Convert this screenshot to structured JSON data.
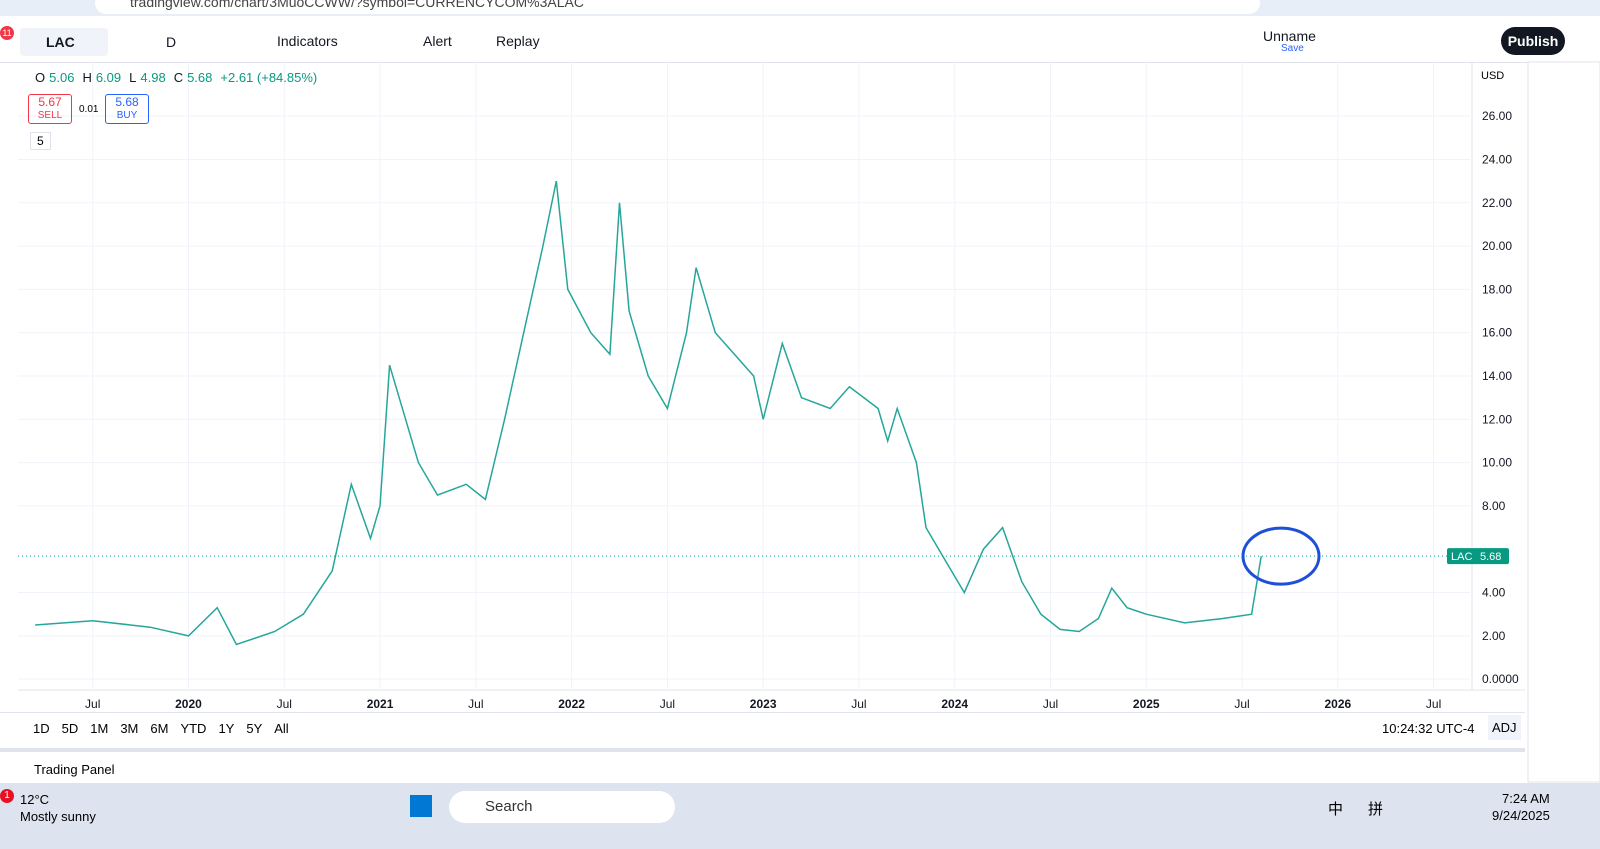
{
  "browser": {
    "url": "tradingview.com/chart/3MuoCCWW/?symbol=CURRENCYCOM%3ALAC",
    "badge": "11"
  },
  "toolbar": {
    "symbol": "LAC",
    "interval": "D",
    "indicators": "Indicators",
    "alert": "Alert",
    "replay": "Replay",
    "layout_name": "Unname",
    "save": "Save",
    "publish": "Publish"
  },
  "legend": {
    "ohlc": [
      {
        "label": "O",
        "value": "5.06"
      },
      {
        "label": "H",
        "value": "6.09"
      },
      {
        "label": "L",
        "value": "4.98"
      },
      {
        "label": "C",
        "value": "5.68"
      }
    ],
    "change": "+2.61 (+84.85%)",
    "sell_price": "5.67",
    "sell": "SELL",
    "spread": "0.01",
    "buy_price": "5.68",
    "buy": "BUY",
    "indicators_count": "5"
  },
  "chart": {
    "type": "line",
    "color": "#26a69a",
    "x": [
      2019.2,
      2019.5,
      2019.8,
      2020.0,
      2020.15,
      2020.25,
      2020.45,
      2020.6,
      2020.75,
      2020.85,
      2020.95,
      2021.0,
      2021.05,
      2021.1,
      2021.2,
      2021.3,
      2021.45,
      2021.55,
      2021.65,
      2021.75,
      2021.85,
      2021.92,
      2021.98,
      2022.1,
      2022.2,
      2022.25,
      2022.3,
      2022.4,
      2022.5,
      2022.6,
      2022.65,
      2022.75,
      2022.85,
      2022.95,
      2023.0,
      2023.1,
      2023.2,
      2023.35,
      2023.45,
      2023.6,
      2023.65,
      2023.7,
      2023.8,
      2023.85,
      2023.95,
      2024.05,
      2024.15,
      2024.25,
      2024.35,
      2024.45,
      2024.55,
      2024.65,
      2024.75,
      2024.82,
      2024.9,
      2025.0,
      2025.2,
      2025.4,
      2025.55,
      2025.6
    ],
    "values": [
      2.5,
      2.7,
      2.4,
      2.0,
      3.3,
      1.6,
      2.2,
      3.0,
      5.0,
      9.0,
      6.5,
      8.0,
      14.5,
      13.0,
      10.0,
      8.5,
      9.0,
      8.3,
      12.0,
      16.0,
      20.0,
      23.0,
      18.0,
      16.0,
      15.0,
      22.0,
      17.0,
      14.0,
      12.5,
      16.0,
      19.0,
      16.0,
      15.0,
      14.0,
      12.0,
      15.5,
      13.0,
      12.5,
      13.5,
      12.5,
      11.0,
      12.5,
      10.0,
      7.0,
      5.5,
      4.0,
      6.0,
      7.0,
      4.5,
      3.0,
      2.3,
      2.2,
      2.8,
      4.2,
      3.3,
      3.0,
      2.6,
      2.8,
      3.0,
      5.68
    ],
    "xlim": [
      2019.11,
      2026.69
    ],
    "ylim": [
      -0.5,
      28.5
    ],
    "yticks": [
      {
        "value": 26,
        "label": "26.00"
      },
      {
        "value": 24,
        "label": "24.00"
      },
      {
        "value": 22,
        "label": "22.00"
      },
      {
        "value": 20,
        "label": "20.00"
      },
      {
        "value": 18,
        "label": "18.00"
      },
      {
        "value": 16,
        "label": "16.00"
      },
      {
        "value": 14,
        "label": "14.00"
      },
      {
        "value": 12,
        "label": "12.00"
      },
      {
        "value": 10,
        "label": "10.00"
      },
      {
        "value": 8,
        "label": "8.00"
      },
      {
        "value": 4,
        "label": "4.00"
      },
      {
        "value": 2,
        "label": "2.00"
      },
      {
        "value": 0,
        "label": "0.0000"
      }
    ],
    "xticks": [
      {
        "value": 2019.5,
        "label": "Jul"
      },
      2020,
      {
        "value": 2020.5,
        "label": "Jul"
      },
      2021,
      {
        "value": 2021.5,
        "label": "Jul"
      },
      2022,
      {
        "value": 2022.5,
        "label": "Jul"
      },
      2023,
      {
        "value": 2023.5,
        "label": "Jul"
      },
      2024,
      {
        "value": 2024.5,
        "label": "Jul"
      },
      2025,
      {
        "value": 2025.5,
        "label": "Jul"
      },
      2026,
      {
        "value": 2026.5,
        "label": "Jul"
      }
    ],
    "last": {
      "name": "LAC",
      "value": 5.68,
      "label": "5.68"
    },
    "currency": "USD"
  },
  "bottom_bar": {
    "ranges": [
      "1D",
      "5D",
      "1M",
      "3M",
      "6M",
      "YTD",
      "1Y",
      "5Y",
      "All"
    ],
    "clock": "10:24:32 UTC-4",
    "adj": "ADJ"
  },
  "trading_panel": "Trading Panel",
  "taskbar": {
    "badge": "1",
    "temp": "12°C",
    "weather": "Mostly sunny",
    "search": "Search",
    "ime1": "中",
    "ime2": "拼",
    "time": "7:24 AM",
    "date": "9/24/2025"
  }
}
